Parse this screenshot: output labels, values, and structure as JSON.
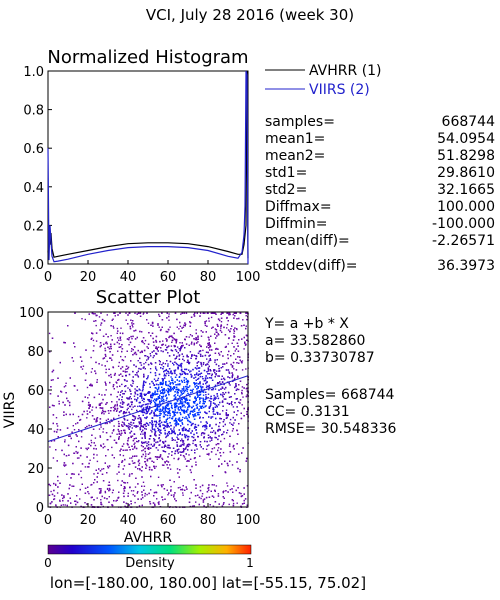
{
  "title": "VCI,  July 28 2016 (week 30)",
  "histogram": {
    "title": "Normalized Histogram",
    "legend": [
      {
        "label": "AVHRR (1)",
        "color": "#000000"
      },
      {
        "label": "VIIRS (2)",
        "color": "#2222cc"
      }
    ],
    "stats": [
      {
        "key": "samples=",
        "value": "668744"
      },
      {
        "key": "mean1=",
        "value": "54.0954"
      },
      {
        "key": "mean2=",
        "value": "51.8298"
      },
      {
        "key": "std1=",
        "value": "29.8610"
      },
      {
        "key": "std2=",
        "value": "32.1665"
      },
      {
        "key": "Diffmax=",
        "value": "100.000"
      },
      {
        "key": "Diffmin=",
        "value": "-100.000"
      },
      {
        "key": "mean(diff)=",
        "value": "-2.26571"
      },
      {
        "key": "stddev(diff)=",
        "value": "36.3973"
      }
    ]
  },
  "scatter": {
    "title": "Scatter Plot",
    "regression": [
      "Y= a +b * X",
      "a= 33.582860",
      "b= 0.33730787",
      "",
      "Samples= 668744",
      "CC=  0.3131",
      "RMSE= 30.548336"
    ]
  },
  "colorbar": {
    "min_label": "0",
    "title": "Density",
    "max_label": "1"
  },
  "footer": "lon=[-180.00, 180.00] lat=[-55.15, 75.02]",
  "chart_data": [
    {
      "type": "line",
      "title": "Normalized Histogram",
      "xlim": [
        0,
        100
      ],
      "ylim": [
        0,
        1.0
      ],
      "xticks": [
        0,
        20,
        40,
        60,
        80,
        100
      ],
      "yticks": [
        0.0,
        0.2,
        0.4,
        0.6,
        0.8,
        1.0
      ],
      "series": [
        {
          "name": "AVHRR (1)",
          "color": "#000000",
          "x": [
            0,
            0.5,
            1,
            1.5,
            2,
            3,
            5,
            10,
            20,
            30,
            40,
            50,
            60,
            70,
            80,
            90,
            95,
            97,
            98,
            98.5,
            99,
            99.5,
            100
          ],
          "y": [
            0.06,
            0.2,
            0.1,
            0.16,
            0.08,
            0.035,
            0.04,
            0.05,
            0.07,
            0.09,
            0.105,
            0.11,
            0.11,
            0.105,
            0.09,
            0.065,
            0.05,
            0.05,
            0.1,
            0.15,
            0.2,
            1.0,
            0.03
          ]
        },
        {
          "name": "VIIRS (2)",
          "color": "#2222cc",
          "x": [
            0,
            0.5,
            1,
            2,
            3,
            5,
            10,
            20,
            30,
            40,
            50,
            60,
            70,
            80,
            90,
            95,
            97,
            98,
            98.5,
            99,
            99.5,
            100
          ],
          "y": [
            0.6,
            0.02,
            0.2,
            0.04,
            0.012,
            0.015,
            0.025,
            0.05,
            0.07,
            0.085,
            0.09,
            0.09,
            0.085,
            0.07,
            0.04,
            0.03,
            0.06,
            0.15,
            0.3,
            1.0,
            0.98,
            0.0
          ]
        }
      ]
    },
    {
      "type": "scatter",
      "title": "Scatter Plot",
      "xlabel": "AVHRR",
      "ylabel": "VIIRS",
      "xlim": [
        0,
        100
      ],
      "ylim": [
        0,
        100
      ],
      "xticks": [
        0,
        20,
        40,
        60,
        80,
        100
      ],
      "yticks": [
        0,
        20,
        40,
        60,
        80,
        100
      ],
      "regression": {
        "a": 33.58286,
        "b": 0.33730787
      },
      "samples": 668744,
      "colorbar": {
        "label": "Density",
        "range": [
          0,
          1
        ]
      }
    }
  ]
}
